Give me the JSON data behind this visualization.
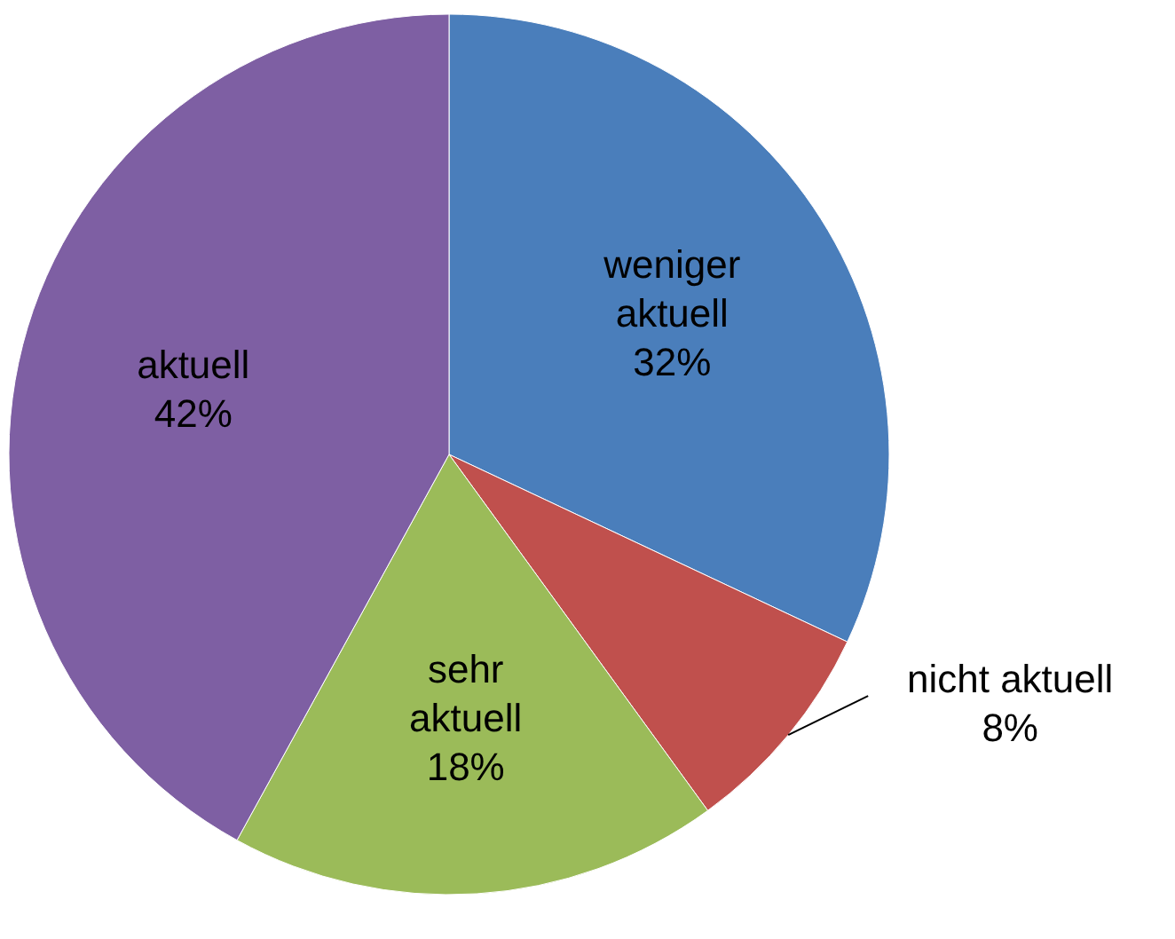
{
  "chart_data": {
    "type": "pie",
    "categories": [
      "weniger aktuell",
      "nicht aktuell",
      "sehr aktuell",
      "aktuell"
    ],
    "values": [
      32,
      8,
      18,
      42
    ],
    "value_labels": [
      "32%",
      "8%",
      "18%",
      "42%"
    ],
    "colors": [
      "#4a7ebb",
      "#c0504d",
      "#9bbb59",
      "#7e5fa3"
    ]
  }
}
